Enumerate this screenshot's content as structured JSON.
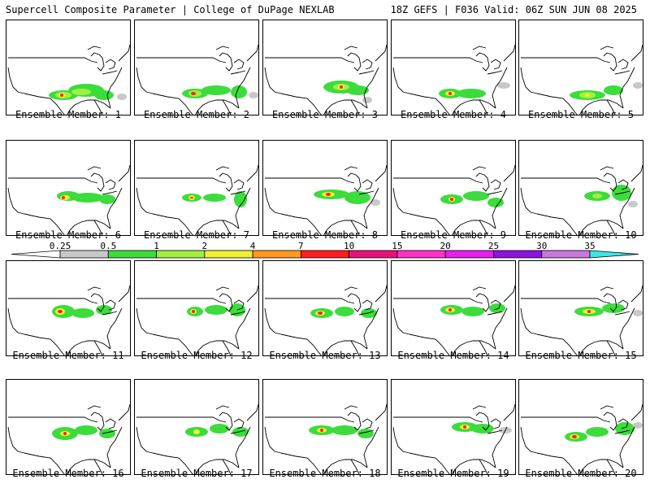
{
  "header": {
    "title_left": "Supercell Composite Parameter | College of DuPage NEXLAB",
    "title_right": "18Z GEFS | F036 Valid: 06Z SUN JUN 08 2025"
  },
  "panels": [
    {
      "label": "Ensemble Member: 1"
    },
    {
      "label": "Ensemble Member: 2"
    },
    {
      "label": "Ensemble Member: 3"
    },
    {
      "label": "Ensemble Member: 4"
    },
    {
      "label": "Ensemble Member: 5"
    },
    {
      "label": "Ensemble Member: 6"
    },
    {
      "label": "Ensemble Member: 7"
    },
    {
      "label": "Ensemble Member: 8"
    },
    {
      "label": "Ensemble Member: 9"
    },
    {
      "label": "Ensemble Member: 10"
    },
    {
      "label": "Ensemble Member: 11"
    },
    {
      "label": "Ensemble Member: 12"
    },
    {
      "label": "Ensemble Member: 13"
    },
    {
      "label": "Ensemble Member: 14"
    },
    {
      "label": "Ensemble Member: 15"
    },
    {
      "label": "Ensemble Member: 16"
    },
    {
      "label": "Ensemble Member: 17"
    },
    {
      "label": "Ensemble Member: 18"
    },
    {
      "label": "Ensemble Member: 19"
    },
    {
      "label": "Ensemble Member: 20"
    }
  ],
  "colorbar": {
    "labels": [
      "0.25",
      "0.5",
      "1",
      "2",
      "4",
      "7",
      "10",
      "15",
      "20",
      "25",
      "30",
      "35"
    ],
    "colors": [
      "#c8c8c8",
      "#3cdc3c",
      "#a0f040",
      "#f0f032",
      "#ff9a1e",
      "#ff1e1e",
      "#e61478",
      "#ff32c8",
      "#e61ef0",
      "#8c14dc",
      "#c878dc",
      "#3ce6e6"
    ]
  },
  "map_colors": {
    "gray": "#c8c8c8",
    "green": "#3cdc3c",
    "lightgreen": "#a0f040",
    "yellow": "#f0f032",
    "orange": "#ff9a1e",
    "red": "#ff1e1e"
  }
}
